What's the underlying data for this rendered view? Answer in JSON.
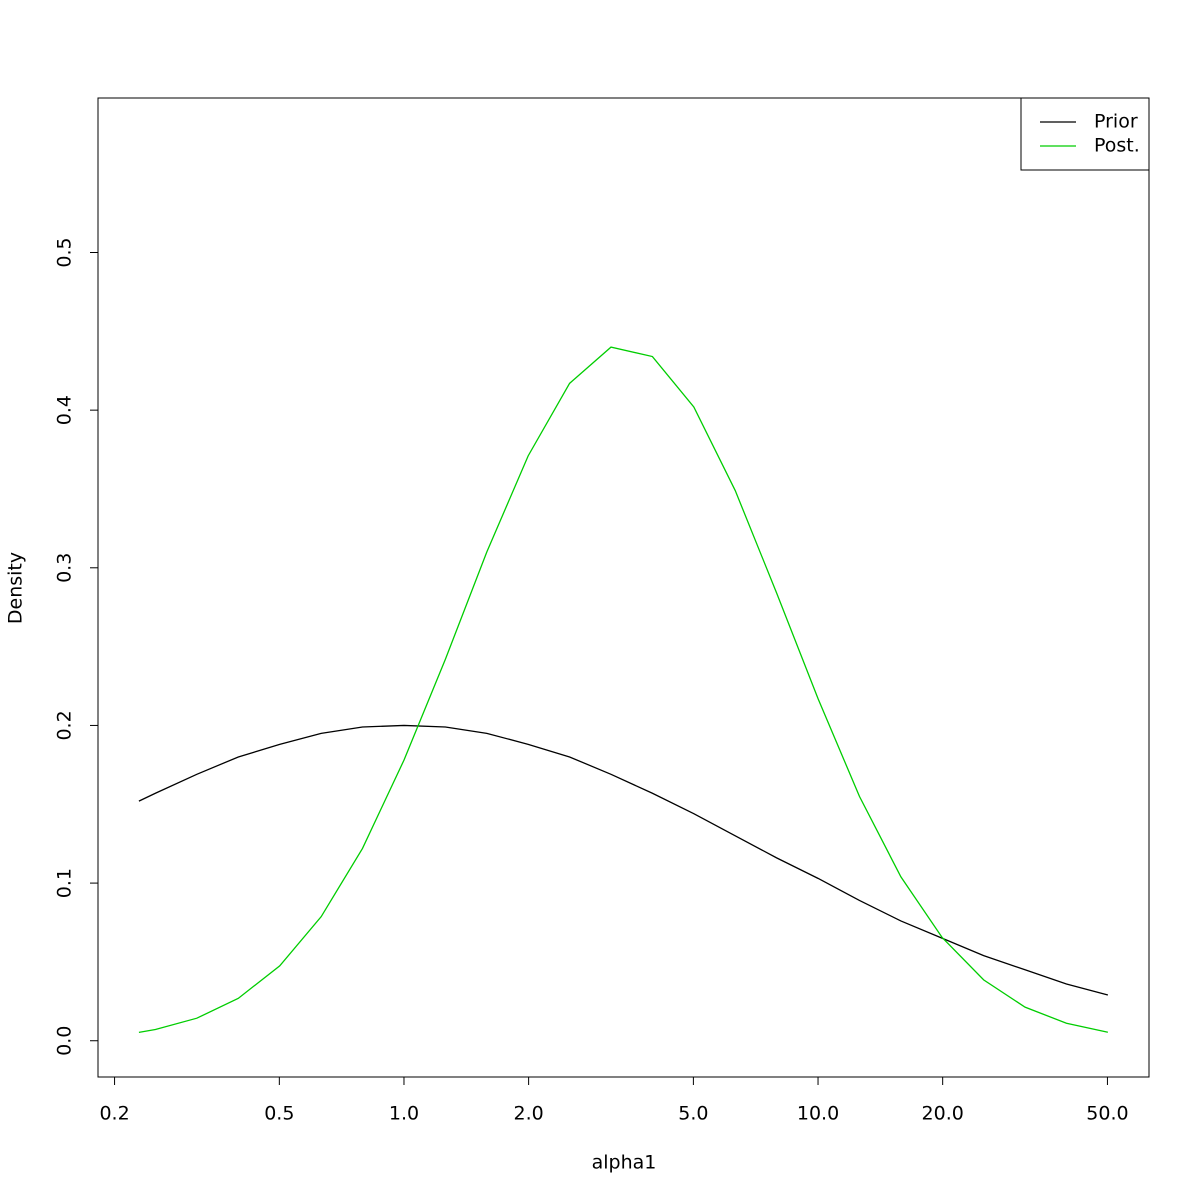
{
  "chart_data": {
    "type": "line",
    "xlabel": "alpha1",
    "ylabel": "Density",
    "xlog": true,
    "grid": false,
    "legend": "top-right",
    "x": [
      0.229,
      0.251,
      0.316,
      0.398,
      0.501,
      0.631,
      0.794,
      1,
      1.259,
      1.585,
      1.995,
      2.512,
      3.162,
      3.981,
      5.012,
      6.31,
      7.943,
      10,
      12.59,
      15.85,
      19.95,
      25.12,
      31.62,
      39.81,
      50.12
    ],
    "series": [
      {
        "name": "Prior",
        "color": "#000000",
        "values": [
          0.152,
          0.157,
          0.169,
          0.18,
          0.188,
          0.195,
          0.199,
          0.2,
          0.199,
          0.195,
          0.188,
          0.18,
          0.169,
          0.157,
          0.144,
          0.13,
          0.116,
          0.103,
          0.089,
          0.076,
          0.065,
          0.054,
          0.045,
          0.036,
          0.029
        ]
      },
      {
        "name": "Post.",
        "color": "#00cd00",
        "values": [
          0.0053,
          0.0071,
          0.0143,
          0.0269,
          0.0475,
          0.0787,
          0.122,
          0.178,
          0.242,
          0.31,
          0.371,
          0.417,
          0.44,
          0.434,
          0.402,
          0.349,
          0.284,
          0.217,
          0.155,
          0.104,
          0.0654,
          0.0386,
          0.0213,
          0.0111,
          0.0054
        ]
      }
    ],
    "xlim": [
      0.1824,
      63.0
    ],
    "ylim": [
      -0.023,
      0.598
    ],
    "xticks": [
      {
        "value": 0.2,
        "label": "0.2"
      },
      {
        "value": 0.5,
        "label": "0.5"
      },
      {
        "value": 1,
        "label": "1.0"
      },
      {
        "value": 2,
        "label": "2.0"
      },
      {
        "value": 5,
        "label": "5.0"
      },
      {
        "value": 10,
        "label": "10.0"
      },
      {
        "value": 20,
        "label": "20.0"
      },
      {
        "value": 50,
        "label": "50.0"
      }
    ],
    "yticks": [
      {
        "value": 0,
        "label": "0.0"
      },
      0.1,
      0.2,
      0.3,
      0.4,
      0.5
    ]
  }
}
